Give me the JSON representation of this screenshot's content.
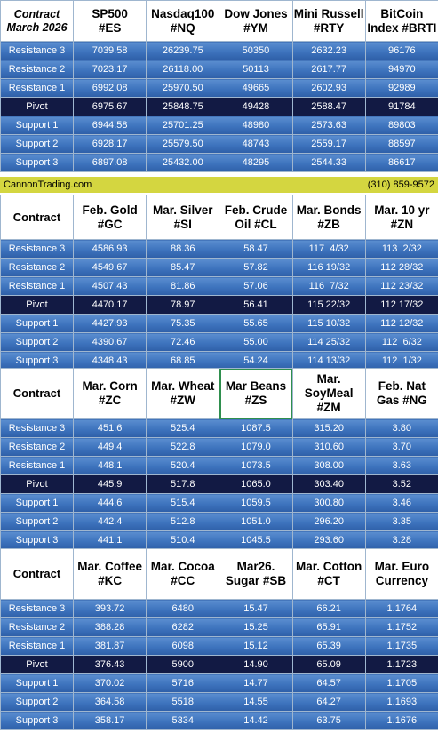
{
  "brand_band": {
    "site": "CannonTrading.com",
    "phone": "(310) 859-9572"
  },
  "levels": [
    "Resistance 3",
    "Resistance 2",
    "Resistance 1",
    "Pivot",
    "Support 1",
    "Support 2",
    "Support 3"
  ],
  "sections": [
    {
      "corner_line1": "Contract",
      "corner_line2": "March 2026",
      "headers": [
        [
          "SP500",
          "#ES"
        ],
        [
          "Nasdaq100",
          "#NQ"
        ],
        [
          "Dow Jones",
          "#YM"
        ],
        [
          "Mini Russell",
          "#RTY"
        ],
        [
          "BitCoin",
          "Index #BRTI"
        ]
      ],
      "rows": [
        [
          "7039.58",
          "26239.75",
          "50350",
          "2632.23",
          "96176"
        ],
        [
          "7023.17",
          "26118.00",
          "50113",
          "2617.77",
          "94970"
        ],
        [
          "6992.08",
          "25970.50",
          "49665",
          "2602.93",
          "92989"
        ],
        [
          "6975.67",
          "25848.75",
          "49428",
          "2588.47",
          "91784"
        ],
        [
          "6944.58",
          "25701.25",
          "48980",
          "2573.63",
          "89803"
        ],
        [
          "6928.17",
          "25579.50",
          "48743",
          "2559.17",
          "88597"
        ],
        [
          "6897.08",
          "25432.00",
          "48295",
          "2544.33",
          "86617"
        ]
      ]
    },
    {
      "corner_line1": "Contract",
      "corner_line2": "",
      "headers": [
        [
          "Feb. Gold",
          "#GC"
        ],
        [
          "Mar. Silver",
          "#SI"
        ],
        [
          "Feb. Crude",
          "Oil #CL"
        ],
        [
          "Mar. Bonds",
          "#ZB"
        ],
        [
          "Mar. 10 yr",
          "#ZN"
        ]
      ],
      "rows": [
        [
          "4586.93",
          "88.36",
          "58.47",
          "117  4/32",
          "113  2/32"
        ],
        [
          "4549.67",
          "85.47",
          "57.82",
          "116 19/32",
          "112 28/32"
        ],
        [
          "4507.43",
          "81.86",
          "57.06",
          "116  7/32",
          "112 23/32"
        ],
        [
          "4470.17",
          "78.97",
          "56.41",
          "115 22/32",
          "112 17/32"
        ],
        [
          "4427.93",
          "75.35",
          "55.65",
          "115 10/32",
          "112 12/32"
        ],
        [
          "4390.67",
          "72.46",
          "55.00",
          "114 25/32",
          "112  6/32"
        ],
        [
          "4348.43",
          "68.85",
          "54.24",
          "114 13/32",
          "112  1/32"
        ]
      ]
    },
    {
      "corner_line1": "Contract",
      "corner_line2": "",
      "headers": [
        [
          "Mar. Corn",
          "#ZC"
        ],
        [
          "Mar.  Wheat",
          "#ZW"
        ],
        [
          "Mar Beans",
          "#ZS"
        ],
        [
          "Mar.",
          "SoyMeal #ZM"
        ],
        [
          "Feb. Nat",
          "Gas #NG"
        ]
      ],
      "rows": [
        [
          "451.6",
          "525.4",
          "1087.5",
          "315.20",
          "3.80"
        ],
        [
          "449.4",
          "522.8",
          "1079.0",
          "310.60",
          "3.70"
        ],
        [
          "448.1",
          "520.4",
          "1073.5",
          "308.00",
          "3.63"
        ],
        [
          "445.9",
          "517.8",
          "1065.0",
          "303.40",
          "3.52"
        ],
        [
          "444.6",
          "515.4",
          "1059.5",
          "300.80",
          "3.46"
        ],
        [
          "442.4",
          "512.8",
          "1051.0",
          "296.20",
          "3.35"
        ],
        [
          "441.1",
          "510.4",
          "1045.5",
          "293.60",
          "3.28"
        ]
      ]
    },
    {
      "corner_line1": "Contract",
      "corner_line2": "",
      "headers": [
        [
          "Mar. Coffee",
          "#KC"
        ],
        [
          "Mar. Cocoa",
          "#CC"
        ],
        [
          "Mar26.",
          "Sugar #SB"
        ],
        [
          "Mar. Cotton",
          "#CT"
        ],
        [
          "Mar. Euro",
          "Currency"
        ]
      ],
      "rows": [
        [
          "393.72",
          "6480",
          "15.47",
          "66.21",
          "1.1764"
        ],
        [
          "388.28",
          "6282",
          "15.25",
          "65.91",
          "1.1752"
        ],
        [
          "381.87",
          "6098",
          "15.12",
          "65.39",
          "1.1735"
        ],
        [
          "376.43",
          "5900",
          "14.90",
          "65.09",
          "1.1723"
        ],
        [
          "370.02",
          "5716",
          "14.77",
          "64.57",
          "1.1705"
        ],
        [
          "364.58",
          "5518",
          "14.55",
          "64.27",
          "1.1693"
        ],
        [
          "358.17",
          "5334",
          "14.42",
          "63.75",
          "1.1676"
        ]
      ]
    }
  ]
}
